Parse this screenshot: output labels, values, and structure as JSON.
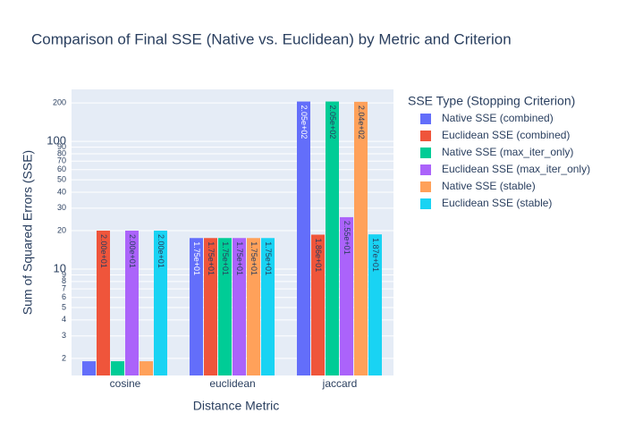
{
  "chart_data": {
    "type": "bar",
    "title": "Comparison of Final SSE (Native vs. Euclidean) by Metric and Criterion",
    "x_label": "Distance Metric",
    "y_label": "Sum of Squared Errors (SSE)",
    "legend_title": "SSE Type (Stopping Criterion)",
    "log_y": true,
    "grid": true,
    "legend_position": "right",
    "categories": [
      "cosine",
      "euclidean",
      "jaccard"
    ],
    "ylim": [
      1.47,
      255
    ],
    "yticks": [
      2,
      3,
      4,
      5,
      6,
      7,
      8,
      9,
      10,
      20,
      30,
      40,
      50,
      60,
      70,
      80,
      90,
      100,
      200
    ],
    "series": [
      {
        "name": "Native SSE (combined)",
        "color": "#636efa",
        "values": [
          1.9,
          17.5,
          205
        ],
        "value_labels": [
          null,
          "1.75e+01",
          "2.05e+02"
        ]
      },
      {
        "name": "Euclidean SSE (combined)",
        "color": "#ef553b",
        "values": [
          20.0,
          17.5,
          18.6
        ],
        "value_labels": [
          "2.00e+01",
          "1.75e+01",
          "1.86e+01"
        ]
      },
      {
        "name": "Native SSE (max_iter_only)",
        "color": "#00cc96",
        "values": [
          1.9,
          17.5,
          205
        ],
        "value_labels": [
          null,
          "1.75e+01",
          "2.05e+02"
        ]
      },
      {
        "name": "Euclidean SSE (max_iter_only)",
        "color": "#ab63fa",
        "values": [
          20.0,
          17.5,
          25.5
        ],
        "value_labels": [
          "2.00e+01",
          "1.75e+01",
          "2.55e+01"
        ]
      },
      {
        "name": "Native SSE (stable)",
        "color": "#ffa15a",
        "values": [
          1.9,
          17.5,
          204
        ],
        "value_labels": [
          null,
          "1.75e+01",
          "2.04e+02"
        ]
      },
      {
        "name": "Euclidean SSE (stable)",
        "color": "#19d3f3",
        "values": [
          20.0,
          17.5,
          18.7
        ],
        "value_labels": [
          "2.00e+01",
          "1.75e+01",
          "1.87e+01"
        ]
      }
    ]
  }
}
